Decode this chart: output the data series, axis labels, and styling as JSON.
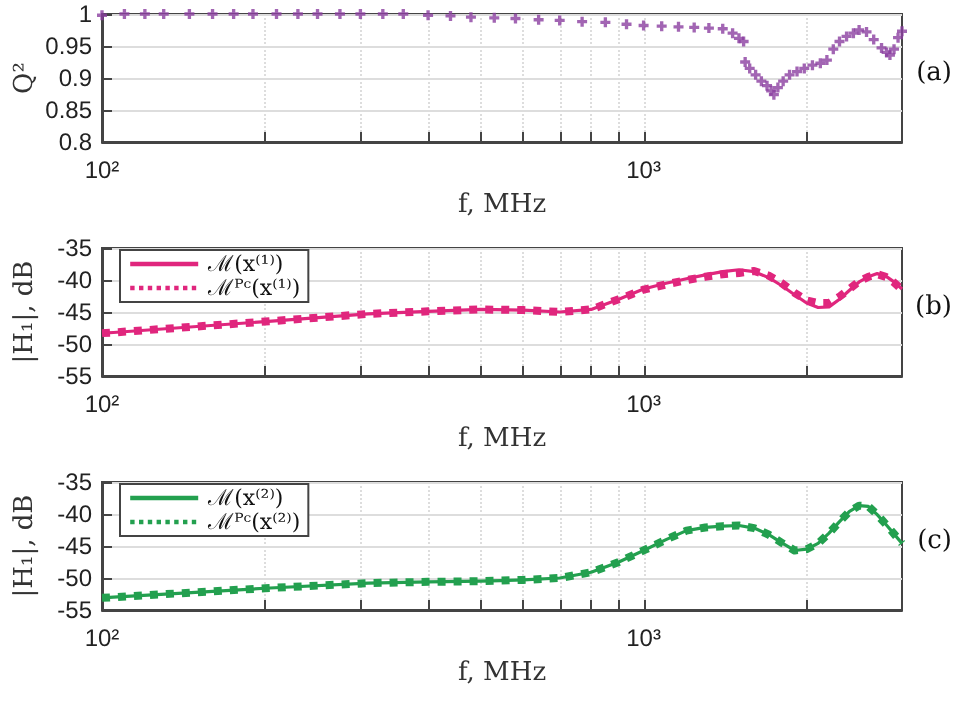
{
  "chart_data": [
    {
      "type": "scatter",
      "xlabel": "f, MHz",
      "ylabel": "Q²",
      "annotations": [
        "(a)"
      ],
      "log": "x",
      "grid": true,
      "legend": false,
      "marker": "cross",
      "xlim": [
        100,
        3000
      ],
      "ylim": [
        0.8,
        1
      ],
      "xticks": [
        {
          "value": 100,
          "label": "10²"
        },
        {
          "value": 200,
          "label": null
        },
        {
          "value": 300,
          "label": null
        },
        {
          "value": 400,
          "label": null
        },
        {
          "value": 500,
          "label": null
        },
        {
          "value": 600,
          "label": null
        },
        {
          "value": 700,
          "label": null
        },
        {
          "value": 800,
          "label": null
        },
        {
          "value": 900,
          "label": null
        },
        {
          "value": 1000,
          "label": "10³"
        },
        {
          "value": 2000,
          "label": null
        }
      ],
      "yticks": [
        0.8,
        0.85,
        0.9,
        0.95,
        1
      ],
      "x": [
        100,
        110,
        120,
        130,
        145,
        160,
        175,
        190,
        210,
        230,
        250,
        275,
        300,
        330,
        360,
        400,
        440,
        480,
        530,
        580,
        640,
        700,
        770,
        850,
        930,
        1000,
        1080,
        1160,
        1240,
        1320,
        1400,
        1460,
        1500,
        1530,
        1540,
        1570,
        1610,
        1650,
        1690,
        1720,
        1740,
        1770,
        1810,
        1860,
        1920,
        1980,
        2050,
        2120,
        2180,
        2240,
        2300,
        2370,
        2440,
        2500,
        2580,
        2660,
        2750,
        2810,
        2850,
        2900,
        2950,
        3000
      ],
      "series": [
        {
          "color": "#8b3fa0",
          "values": [
            0.998,
            1,
            1,
            1,
            1,
            1,
            1,
            1,
            1,
            1,
            1,
            1,
            1,
            1,
            1,
            0.998,
            0.997,
            0.995,
            0.994,
            0.993,
            0.991,
            0.99,
            0.988,
            0.987,
            0.984,
            0.982,
            0.981,
            0.98,
            0.979,
            0.978,
            0.977,
            0.97,
            0.962,
            0.957,
            0.925,
            0.915,
            0.905,
            0.895,
            0.888,
            0.88,
            0.874,
            0.885,
            0.895,
            0.905,
            0.91,
            0.915,
            0.92,
            0.923,
            0.928,
            0.945,
            0.957,
            0.965,
            0.97,
            0.975,
            0.972,
            0.96,
            0.947,
            0.94,
            0.936,
            0.945,
            0.963,
            0.973
          ]
        }
      ]
    },
    {
      "type": "line",
      "xlabel": "f, MHz",
      "ylabel": "|H₁|, dB",
      "annotations": [
        "(b)"
      ],
      "log": "x",
      "grid": true,
      "legend": "left",
      "marker": "none",
      "xlim": [
        100,
        3000
      ],
      "ylim": [
        -55,
        -35
      ],
      "xticks": [
        {
          "value": 100,
          "label": "10²"
        },
        {
          "value": 200,
          "label": null
        },
        {
          "value": 300,
          "label": null
        },
        {
          "value": 400,
          "label": null
        },
        {
          "value": 500,
          "label": null
        },
        {
          "value": 600,
          "label": null
        },
        {
          "value": 700,
          "label": null
        },
        {
          "value": 800,
          "label": null
        },
        {
          "value": 900,
          "label": null
        },
        {
          "value": 1000,
          "label": "10³"
        },
        {
          "value": 2000,
          "label": null
        }
      ],
      "yticks": [
        -55,
        -50,
        -45,
        -40,
        -35
      ],
      "x": [
        100,
        105,
        200,
        310,
        400,
        500,
        600,
        700,
        800,
        900,
        1000,
        1100,
        1200,
        1300,
        1400,
        1500,
        1600,
        1700,
        1800,
        1900,
        2000,
        2100,
        2200,
        2300,
        2400,
        2500,
        2600,
        2700,
        2800,
        2900,
        3000
      ],
      "series": [
        {
          "name": "ℳ(x⁽¹⁾)",
          "color": "#e0267d",
          "line_style": "solid",
          "values": [
            -48.3,
            -48.2,
            -46.5,
            -45.3,
            -44.9,
            -44.6,
            -44.7,
            -45,
            -44.6,
            -43,
            -41.4,
            -40.5,
            -39.8,
            -39.2,
            -38.7,
            -38.4,
            -38.7,
            -39.6,
            -40.9,
            -42.3,
            -43.6,
            -44.3,
            -44.2,
            -43,
            -41.6,
            -40.3,
            -39.5,
            -39,
            -39.4,
            -40.3,
            -41.4
          ]
        },
        {
          "name": "ℳᴾᶜ(x⁽¹⁾)",
          "color": "#e0267d",
          "line_style": "dotted",
          "values": [
            -48.3,
            -48.2,
            -46.5,
            -45.3,
            -44.9,
            -44.6,
            -44.7,
            -45,
            -44.6,
            -43,
            -41.5,
            -40.7,
            -40,
            -39.5,
            -39.1,
            -38.9,
            -38.6,
            -39.3,
            -40.5,
            -42,
            -43.2,
            -43.6,
            -43.6,
            -42.6,
            -41.4,
            -40.2,
            -39.5,
            -39.1,
            -39.5,
            -40.4,
            -41.5
          ]
        }
      ]
    },
    {
      "type": "line",
      "xlabel": "f, MHz",
      "ylabel": "|H₁|, dB",
      "annotations": [
        "(c)"
      ],
      "log": "x",
      "grid": true,
      "legend": "left",
      "marker": "none",
      "xlim": [
        100,
        3000
      ],
      "ylim": [
        -55,
        -35
      ],
      "xticks": [
        {
          "value": 100,
          "label": "10²"
        },
        {
          "value": 200,
          "label": null
        },
        {
          "value": 300,
          "label": null
        },
        {
          "value": 400,
          "label": null
        },
        {
          "value": 500,
          "label": null
        },
        {
          "value": 600,
          "label": null
        },
        {
          "value": 700,
          "label": null
        },
        {
          "value": 800,
          "label": null
        },
        {
          "value": 900,
          "label": null
        },
        {
          "value": 1000,
          "label": "10³"
        },
        {
          "value": 2000,
          "label": null
        }
      ],
      "yticks": [
        -55,
        -50,
        -45,
        -40,
        -35
      ],
      "x": [
        100,
        105,
        200,
        310,
        400,
        500,
        600,
        700,
        800,
        900,
        1000,
        1100,
        1200,
        1300,
        1400,
        1500,
        1600,
        1700,
        1800,
        1900,
        2000,
        2100,
        2200,
        2300,
        2400,
        2500,
        2600,
        2700,
        2800,
        2900,
        3000
      ],
      "series": [
        {
          "name": "ℳ(x⁽²⁾)",
          "color": "#23a04f",
          "line_style": "solid",
          "values": [
            -53.1,
            -53,
            -51.6,
            -50.8,
            -50.6,
            -50.5,
            -50.3,
            -50,
            -49.1,
            -47.5,
            -45.7,
            -44,
            -42.6,
            -42.1,
            -41.9,
            -41.8,
            -42.2,
            -43.2,
            -44.5,
            -45.7,
            -45.5,
            -44.6,
            -43,
            -41.2,
            -39.6,
            -38.7,
            -38.8,
            -40.1,
            -41.6,
            -43.1,
            -44.6
          ]
        },
        {
          "name": "ℳᴾᶜ(x⁽²⁾)",
          "color": "#23a04f",
          "line_style": "dotted",
          "values": [
            -53.1,
            -53,
            -51.6,
            -50.8,
            -50.6,
            -50.5,
            -50.3,
            -50,
            -49.1,
            -47.5,
            -45.7,
            -44,
            -42.6,
            -42.1,
            -41.9,
            -41.8,
            -42.2,
            -43.2,
            -44.5,
            -45.7,
            -45.5,
            -44.6,
            -43,
            -41.2,
            -39.6,
            -38.7,
            -38.8,
            -40.1,
            -41.6,
            -43.1,
            -44.6
          ]
        }
      ]
    }
  ]
}
